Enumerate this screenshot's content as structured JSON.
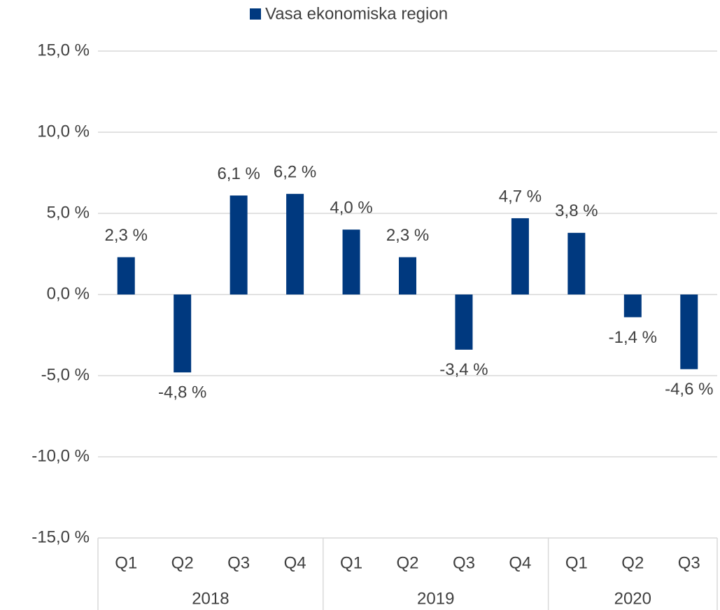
{
  "chart_data": {
    "type": "bar",
    "groups": [
      {
        "label": "2018",
        "categories": [
          "Q1",
          "Q2",
          "Q3",
          "Q4"
        ]
      },
      {
        "label": "2019",
        "categories": [
          "Q1",
          "Q2",
          "Q3",
          "Q4"
        ]
      },
      {
        "label": "2020",
        "categories": [
          "Q1",
          "Q2",
          "Q3"
        ]
      }
    ],
    "series": [
      {
        "name": "Vasa ekonomiska region",
        "color": "#00397f",
        "values": [
          2.3,
          -4.8,
          6.1,
          6.2,
          4.0,
          2.3,
          -3.4,
          4.7,
          3.8,
          -1.4,
          -4.6
        ],
        "value_labels": [
          "2,3 %",
          "-4,8 %",
          "6,1 %",
          "6,2 %",
          "4,0 %",
          "2,3 %",
          "-3,4 %",
          "4,7 %",
          "3,8 %",
          "-1,4 %",
          "-4,6 %"
        ]
      }
    ],
    "ylim": [
      -15,
      15
    ],
    "yticks": [
      {
        "value": -15,
        "label": "-15,0 %"
      },
      {
        "value": -10,
        "label": "-10,0 %"
      },
      {
        "value": -5,
        "label": "-5,0 %"
      },
      {
        "value": 0,
        "label": "0,0 %"
      },
      {
        "value": 5,
        "label": "5,0 %"
      },
      {
        "value": 10,
        "label": "10,0 %"
      },
      {
        "value": 15,
        "label": "15,0 %"
      }
    ],
    "grid": true,
    "legend": "top"
  }
}
